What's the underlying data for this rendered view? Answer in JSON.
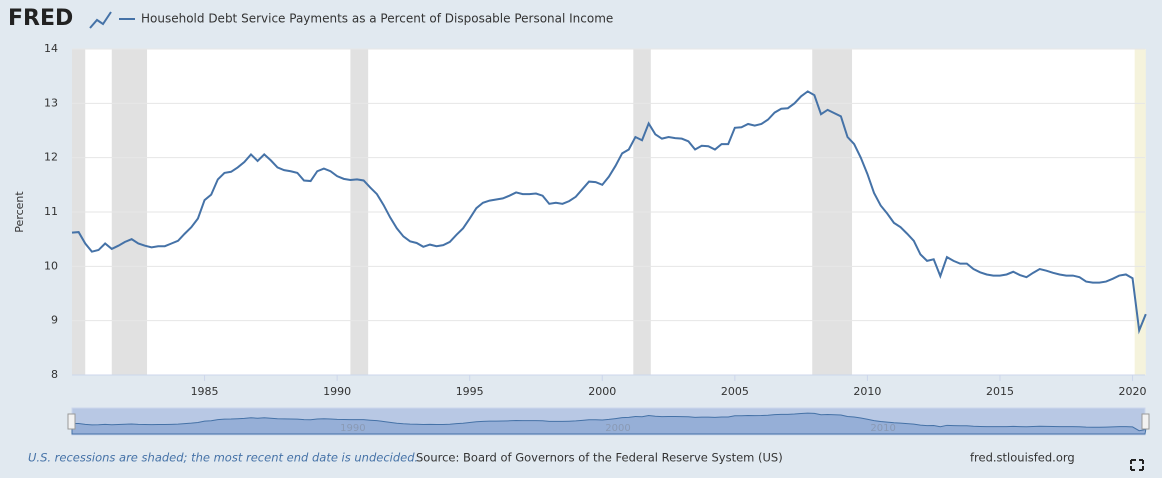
{
  "brand": "FRED",
  "chart_data": {
    "type": "line",
    "series": [
      {
        "name": "Household Debt Service Payments as a Percent of Disposable Personal Income",
        "color": "#4572a7",
        "values": [
          10.62,
          10.63,
          10.42,
          10.27,
          10.3,
          10.42,
          10.32,
          10.38,
          10.45,
          10.5,
          10.42,
          10.38,
          10.35,
          10.37,
          10.37,
          10.42,
          10.47,
          10.6,
          10.72,
          10.88,
          11.22,
          11.32,
          11.6,
          11.72,
          11.74,
          11.82,
          11.92,
          12.06,
          11.94,
          12.06,
          11.95,
          11.82,
          11.77,
          11.75,
          11.72,
          11.58,
          11.57,
          11.75,
          11.8,
          11.75,
          11.66,
          11.61,
          11.59,
          11.6,
          11.58,
          11.45,
          11.33,
          11.13,
          10.9,
          10.7,
          10.55,
          10.46,
          10.43,
          10.36,
          10.4,
          10.37,
          10.39,
          10.45,
          10.58,
          10.7,
          10.88,
          11.07,
          11.17,
          11.21,
          11.23,
          11.25,
          11.3,
          11.36,
          11.33,
          11.33,
          11.34,
          11.3,
          11.15,
          11.17,
          11.15,
          11.2,
          11.28,
          11.42,
          11.56,
          11.55,
          11.5,
          11.65,
          11.85,
          12.08,
          12.15,
          12.38,
          12.32,
          12.63,
          12.43,
          12.35,
          12.38,
          12.36,
          12.35,
          12.3,
          12.15,
          12.22,
          12.21,
          12.15,
          12.25,
          12.25,
          12.55,
          12.56,
          12.62,
          12.59,
          12.62,
          12.7,
          12.83,
          12.9,
          12.91,
          13.0,
          13.13,
          13.22,
          13.15,
          12.8,
          12.88,
          12.82,
          12.76,
          12.38,
          12.25,
          12.0,
          11.7,
          11.35,
          11.12,
          10.97,
          10.8,
          10.72,
          10.6,
          10.47,
          10.22,
          10.1,
          10.13,
          9.82,
          10.17,
          10.1,
          10.05,
          10.05,
          9.95,
          9.89,
          9.85,
          9.83,
          9.83,
          9.85,
          9.9,
          9.84,
          9.8,
          9.88,
          9.95,
          9.92,
          9.88,
          9.85,
          9.83,
          9.83,
          9.8,
          9.72,
          9.7,
          9.7,
          9.72,
          9.77,
          9.83,
          9.85,
          9.78,
          8.82,
          9.12
        ]
      }
    ],
    "x": [
      1980,
      1980.25,
      1980.5,
      1980.75,
      1981,
      1981.25,
      1981.5,
      1981.75,
      1982,
      1982.25,
      1982.5,
      1982.75,
      1983,
      1983.25,
      1983.5,
      1983.75,
      1984,
      1984.25,
      1984.5,
      1984.75,
      1985,
      1985.25,
      1985.5,
      1985.75,
      1986,
      1986.25,
      1986.5,
      1986.75,
      1987,
      1987.25,
      1987.5,
      1987.75,
      1988,
      1988.25,
      1988.5,
      1988.75,
      1989,
      1989.25,
      1989.5,
      1989.75,
      1990,
      1990.25,
      1990.5,
      1990.75,
      1991,
      1991.25,
      1991.5,
      1991.75,
      1992,
      1992.25,
      1992.5,
      1992.75,
      1993,
      1993.25,
      1993.5,
      1993.75,
      1994,
      1994.25,
      1994.5,
      1994.75,
      1995,
      1995.25,
      1995.5,
      1995.75,
      1996,
      1996.25,
      1996.5,
      1996.75,
      1997,
      1997.25,
      1997.5,
      1997.75,
      1998,
      1998.25,
      1998.5,
      1998.75,
      1999,
      1999.25,
      1999.5,
      1999.75,
      2000,
      2000.25,
      2000.5,
      2000.75,
      2001,
      2001.25,
      2001.5,
      2001.75,
      2002,
      2002.25,
      2002.5,
      2002.75,
      2003,
      2003.25,
      2003.5,
      2003.75,
      2004,
      2004.25,
      2004.5,
      2004.75,
      2005,
      2005.25,
      2005.5,
      2005.75,
      2006,
      2006.25,
      2006.5,
      2006.75,
      2007,
      2007.25,
      2007.5,
      2007.75,
      2008,
      2008.25,
      2008.5,
      2008.75,
      2009,
      2009.25,
      2009.5,
      2009.75,
      2010,
      2010.25,
      2010.5,
      2010.75,
      2011,
      2011.25,
      2011.5,
      2011.75,
      2012,
      2012.25,
      2012.5,
      2012.75,
      2013,
      2013.25,
      2013.5,
      2013.75,
      2014,
      2014.25,
      2014.5,
      2014.75,
      2015,
      2015.25,
      2015.5,
      2015.75,
      2016,
      2016.25,
      2016.5,
      2016.75,
      2017,
      2017.25,
      2017.5,
      2017.75,
      2018,
      2018.25,
      2018.5,
      2018.75,
      2019,
      2019.25,
      2019.5,
      2019.75,
      2020,
      2020.25,
      2020.5
    ],
    "recessions": [
      [
        1980,
        1980.5
      ],
      [
        1981.5,
        1982.83
      ],
      [
        1990.5,
        1991.17
      ],
      [
        2001.17,
        2001.83
      ],
      [
        2007.92,
        2009.42
      ],
      [
        2020.08,
        2020.5
      ]
    ],
    "xlim": [
      1980,
      2020.47
    ],
    "ylim": [
      8,
      14
    ],
    "xticks": [
      1985,
      1990,
      1995,
      2000,
      2005,
      2010,
      2015,
      2020
    ],
    "yticks": [
      8,
      9,
      10,
      11,
      12,
      13,
      14
    ],
    "navigator_ticks": [
      1990,
      2000,
      2010
    ],
    "ylabel": "Percent",
    "grid": true
  },
  "footer": {
    "note": "U.S. recessions are shaded; the most recent end date is undecided.",
    "source": "Source: Board of Governors of the Federal Reserve System (US)",
    "site": "fred.stlouisfed.org"
  }
}
